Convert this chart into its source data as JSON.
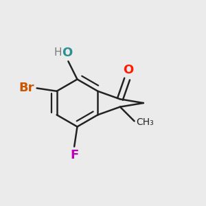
{
  "bg_color": "#ebebeb",
  "bond_color": "#222222",
  "bond_width": 1.8,
  "dbo": 0.025,
  "atom_labels": {
    "O_ketone": {
      "text": "O",
      "color": "#ff1a00",
      "fontsize": 13,
      "fontweight": "bold"
    },
    "O_hydroxy": {
      "text": "O",
      "color": "#2a9090",
      "fontsize": 13,
      "fontweight": "bold"
    },
    "H_hydroxy": {
      "text": "H",
      "color": "#7a7a7a",
      "fontsize": 11,
      "fontweight": "normal"
    },
    "Br": {
      "text": "Br",
      "color": "#cc5500",
      "fontsize": 13,
      "fontweight": "bold"
    },
    "F": {
      "text": "F",
      "color": "#bb00bb",
      "fontsize": 13,
      "fontweight": "bold"
    },
    "CH3": {
      "text": "CH₃",
      "color": "#222222",
      "fontsize": 10,
      "fontweight": "normal"
    }
  }
}
